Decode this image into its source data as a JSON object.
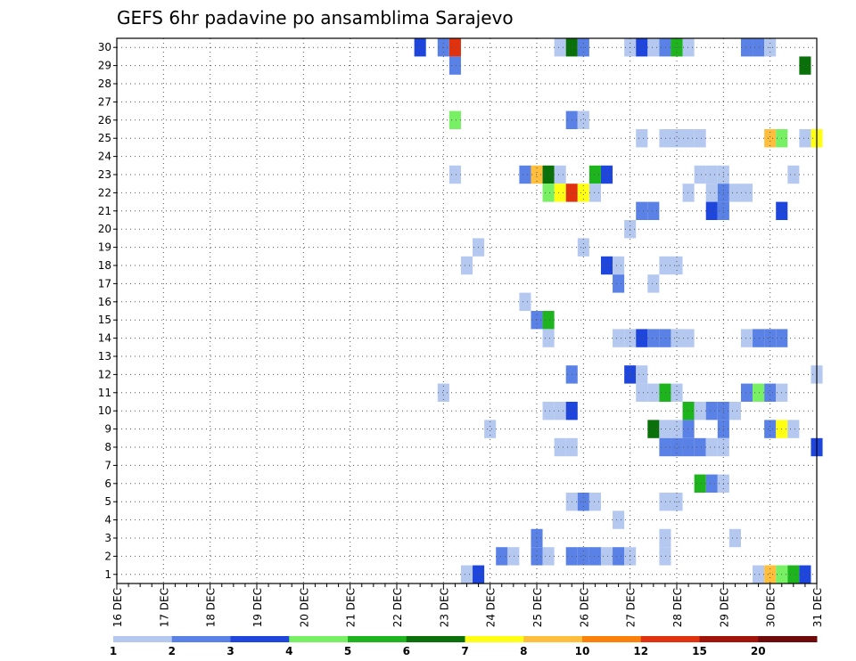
{
  "chart_data": {
    "type": "heatmap",
    "title": "GEFS 6hr padavine po ansamblima Sarajevo",
    "xlabel": "",
    "ylabel": "",
    "x_tick_labels": [
      "16 DEC",
      "17 DEC",
      "18 DEC",
      "19 DEC",
      "20 DEC",
      "21 DEC",
      "22 DEC",
      "23 DEC",
      "24 DEC",
      "25 DEC",
      "26 DEC",
      "27 DEC",
      "28 DEC",
      "29 DEC",
      "30 DEC",
      "31 DEC"
    ],
    "y_tick_labels": [
      "1",
      "2",
      "3",
      "4",
      "5",
      "6",
      "7",
      "8",
      "9",
      "10",
      "11",
      "12",
      "13",
      "14",
      "15",
      "16",
      "17",
      "18",
      "19",
      "20",
      "21",
      "22",
      "23",
      "24",
      "25",
      "26",
      "27",
      "28",
      "29",
      "30"
    ],
    "xlim": [
      0,
      60
    ],
    "ylim": [
      0.5,
      30.5
    ],
    "grid": true,
    "legend": "bottom",
    "colorbar": {
      "levels": [
        "1",
        "2",
        "3",
        "4",
        "5",
        "6",
        "7",
        "8",
        "10",
        "12",
        "15",
        "20"
      ],
      "colors": [
        "#b4c8f0",
        "#5a82e6",
        "#1e46dc",
        "#78f064",
        "#1eb41e",
        "#0a700a",
        "#ffff14",
        "#ffbe3c",
        "#fa820a",
        "#e1320f",
        "#a0140a",
        "#6e0a0a"
      ]
    },
    "cells": [
      {
        "t": 26,
        "m": 30,
        "v": 3
      },
      {
        "t": 28,
        "m": 30,
        "v": 2
      },
      {
        "t": 29,
        "m": 30,
        "v": 10
      },
      {
        "t": 38,
        "m": 30,
        "v": 1
      },
      {
        "t": 39,
        "m": 30,
        "v": 6
      },
      {
        "t": 40,
        "m": 30,
        "v": 2
      },
      {
        "t": 44,
        "m": 30,
        "v": 1
      },
      {
        "t": 45,
        "m": 30,
        "v": 3
      },
      {
        "t": 46,
        "m": 30,
        "v": 1
      },
      {
        "t": 47,
        "m": 30,
        "v": 2
      },
      {
        "t": 48,
        "m": 30,
        "v": 5
      },
      {
        "t": 49,
        "m": 30,
        "v": 1
      },
      {
        "t": 54,
        "m": 30,
        "v": 2
      },
      {
        "t": 55,
        "m": 30,
        "v": 2
      },
      {
        "t": 56,
        "m": 30,
        "v": 1
      },
      {
        "t": 29,
        "m": 29,
        "v": 2
      },
      {
        "t": 59,
        "m": 29,
        "v": 6
      },
      {
        "t": 29,
        "m": 26,
        "v": 4
      },
      {
        "t": 39,
        "m": 26,
        "v": 2
      },
      {
        "t": 40,
        "m": 26,
        "v": 1
      },
      {
        "t": 45,
        "m": 25,
        "v": 1
      },
      {
        "t": 47,
        "m": 25,
        "v": 1
      },
      {
        "t": 48,
        "m": 25,
        "v": 1
      },
      {
        "t": 49,
        "m": 25,
        "v": 1
      },
      {
        "t": 50,
        "m": 25,
        "v": 1
      },
      {
        "t": 56,
        "m": 25,
        "v": 8
      },
      {
        "t": 57,
        "m": 25,
        "v": 4
      },
      {
        "t": 59,
        "m": 25,
        "v": 1
      },
      {
        "t": 60,
        "m": 25,
        "v": 7
      },
      {
        "t": 29,
        "m": 23,
        "v": 1
      },
      {
        "t": 35,
        "m": 23,
        "v": 2
      },
      {
        "t": 36,
        "m": 23,
        "v": 8
      },
      {
        "t": 37,
        "m": 23,
        "v": 6
      },
      {
        "t": 38,
        "m": 23,
        "v": 1
      },
      {
        "t": 41,
        "m": 23,
        "v": 5
      },
      {
        "t": 42,
        "m": 23,
        "v": 3
      },
      {
        "t": 50,
        "m": 23,
        "v": 1
      },
      {
        "t": 51,
        "m": 23,
        "v": 1
      },
      {
        "t": 52,
        "m": 23,
        "v": 1
      },
      {
        "t": 58,
        "m": 23,
        "v": 1
      },
      {
        "t": 37,
        "m": 22,
        "v": 4
      },
      {
        "t": 38,
        "m": 22,
        "v": 7
      },
      {
        "t": 39,
        "m": 22,
        "v": 10
      },
      {
        "t": 40,
        "m": 22,
        "v": 7
      },
      {
        "t": 41,
        "m": 22,
        "v": 1
      },
      {
        "t": 49,
        "m": 22,
        "v": 1
      },
      {
        "t": 51,
        "m": 22,
        "v": 1
      },
      {
        "t": 52,
        "m": 22,
        "v": 2
      },
      {
        "t": 53,
        "m": 22,
        "v": 1
      },
      {
        "t": 54,
        "m": 22,
        "v": 1
      },
      {
        "t": 45,
        "m": 21,
        "v": 2
      },
      {
        "t": 46,
        "m": 21,
        "v": 2
      },
      {
        "t": 51,
        "m": 21,
        "v": 3
      },
      {
        "t": 52,
        "m": 21,
        "v": 2
      },
      {
        "t": 57,
        "m": 21,
        "v": 3
      },
      {
        "t": 44,
        "m": 20,
        "v": 1
      },
      {
        "t": 31,
        "m": 19,
        "v": 1
      },
      {
        "t": 40,
        "m": 19,
        "v": 1
      },
      {
        "t": 30,
        "m": 18,
        "v": 1
      },
      {
        "t": 42,
        "m": 18,
        "v": 3
      },
      {
        "t": 43,
        "m": 18,
        "v": 1
      },
      {
        "t": 47,
        "m": 18,
        "v": 1
      },
      {
        "t": 48,
        "m": 18,
        "v": 1
      },
      {
        "t": 43,
        "m": 17,
        "v": 2
      },
      {
        "t": 46,
        "m": 17,
        "v": 1
      },
      {
        "t": 35,
        "m": 16,
        "v": 1
      },
      {
        "t": 36,
        "m": 15,
        "v": 2
      },
      {
        "t": 37,
        "m": 15,
        "v": 5
      },
      {
        "t": 37,
        "m": 14,
        "v": 1
      },
      {
        "t": 43,
        "m": 14,
        "v": 1
      },
      {
        "t": 44,
        "m": 14,
        "v": 1
      },
      {
        "t": 45,
        "m": 14,
        "v": 3
      },
      {
        "t": 46,
        "m": 14,
        "v": 2
      },
      {
        "t": 47,
        "m": 14,
        "v": 2
      },
      {
        "t": 48,
        "m": 14,
        "v": 1
      },
      {
        "t": 49,
        "m": 14,
        "v": 1
      },
      {
        "t": 54,
        "m": 14,
        "v": 1
      },
      {
        "t": 55,
        "m": 14,
        "v": 2
      },
      {
        "t": 56,
        "m": 14,
        "v": 2
      },
      {
        "t": 57,
        "m": 14,
        "v": 2
      },
      {
        "t": 39,
        "m": 12,
        "v": 2
      },
      {
        "t": 44,
        "m": 12,
        "v": 3
      },
      {
        "t": 45,
        "m": 12,
        "v": 1
      },
      {
        "t": 60,
        "m": 12,
        "v": 1
      },
      {
        "t": 28,
        "m": 11,
        "v": 1
      },
      {
        "t": 45,
        "m": 11,
        "v": 1
      },
      {
        "t": 46,
        "m": 11,
        "v": 1
      },
      {
        "t": 47,
        "m": 11,
        "v": 5
      },
      {
        "t": 48,
        "m": 11,
        "v": 1
      },
      {
        "t": 54,
        "m": 11,
        "v": 2
      },
      {
        "t": 55,
        "m": 11,
        "v": 4
      },
      {
        "t": 56,
        "m": 11,
        "v": 2
      },
      {
        "t": 57,
        "m": 11,
        "v": 1
      },
      {
        "t": 37,
        "m": 10,
        "v": 1
      },
      {
        "t": 38,
        "m": 10,
        "v": 1
      },
      {
        "t": 39,
        "m": 10,
        "v": 3
      },
      {
        "t": 49,
        "m": 10,
        "v": 5
      },
      {
        "t": 50,
        "m": 10,
        "v": 1
      },
      {
        "t": 51,
        "m": 10,
        "v": 2
      },
      {
        "t": 52,
        "m": 10,
        "v": 2
      },
      {
        "t": 53,
        "m": 10,
        "v": 1
      },
      {
        "t": 32,
        "m": 9,
        "v": 1
      },
      {
        "t": 46,
        "m": 9,
        "v": 6
      },
      {
        "t": 47,
        "m": 9,
        "v": 1
      },
      {
        "t": 48,
        "m": 9,
        "v": 1
      },
      {
        "t": 49,
        "m": 9,
        "v": 2
      },
      {
        "t": 52,
        "m": 9,
        "v": 2
      },
      {
        "t": 56,
        "m": 9,
        "v": 2
      },
      {
        "t": 57,
        "m": 9,
        "v": 7
      },
      {
        "t": 58,
        "m": 9,
        "v": 1
      },
      {
        "t": 38,
        "m": 8,
        "v": 1
      },
      {
        "t": 39,
        "m": 8,
        "v": 1
      },
      {
        "t": 47,
        "m": 8,
        "v": 2
      },
      {
        "t": 48,
        "m": 8,
        "v": 2
      },
      {
        "t": 49,
        "m": 8,
        "v": 2
      },
      {
        "t": 50,
        "m": 8,
        "v": 2
      },
      {
        "t": 51,
        "m": 8,
        "v": 1
      },
      {
        "t": 52,
        "m": 8,
        "v": 1
      },
      {
        "t": 60,
        "m": 8,
        "v": 3
      },
      {
        "t": 50,
        "m": 6,
        "v": 5
      },
      {
        "t": 51,
        "m": 6,
        "v": 2
      },
      {
        "t": 52,
        "m": 6,
        "v": 1
      },
      {
        "t": 39,
        "m": 5,
        "v": 1
      },
      {
        "t": 40,
        "m": 5,
        "v": 2
      },
      {
        "t": 41,
        "m": 5,
        "v": 1
      },
      {
        "t": 47,
        "m": 5,
        "v": 1
      },
      {
        "t": 48,
        "m": 5,
        "v": 1
      },
      {
        "t": 43,
        "m": 4,
        "v": 1
      },
      {
        "t": 36,
        "m": 3,
        "v": 2
      },
      {
        "t": 47,
        "m": 3,
        "v": 1
      },
      {
        "t": 53,
        "m": 3,
        "v": 1
      },
      {
        "t": 33,
        "m": 2,
        "v": 2
      },
      {
        "t": 34,
        "m": 2,
        "v": 1
      },
      {
        "t": 36,
        "m": 2,
        "v": 2
      },
      {
        "t": 37,
        "m": 2,
        "v": 1
      },
      {
        "t": 39,
        "m": 2,
        "v": 2
      },
      {
        "t": 40,
        "m": 2,
        "v": 2
      },
      {
        "t": 41,
        "m": 2,
        "v": 2
      },
      {
        "t": 42,
        "m": 2,
        "v": 1
      },
      {
        "t": 43,
        "m": 2,
        "v": 2
      },
      {
        "t": 44,
        "m": 2,
        "v": 1
      },
      {
        "t": 47,
        "m": 2,
        "v": 1
      },
      {
        "t": 30,
        "m": 1,
        "v": 1
      },
      {
        "t": 31,
        "m": 1,
        "v": 3
      },
      {
        "t": 55,
        "m": 1,
        "v": 1
      },
      {
        "t": 56,
        "m": 1,
        "v": 8
      },
      {
        "t": 57,
        "m": 1,
        "v": 4
      },
      {
        "t": 58,
        "m": 1,
        "v": 5
      },
      {
        "t": 59,
        "m": 1,
        "v": 3
      }
    ]
  }
}
